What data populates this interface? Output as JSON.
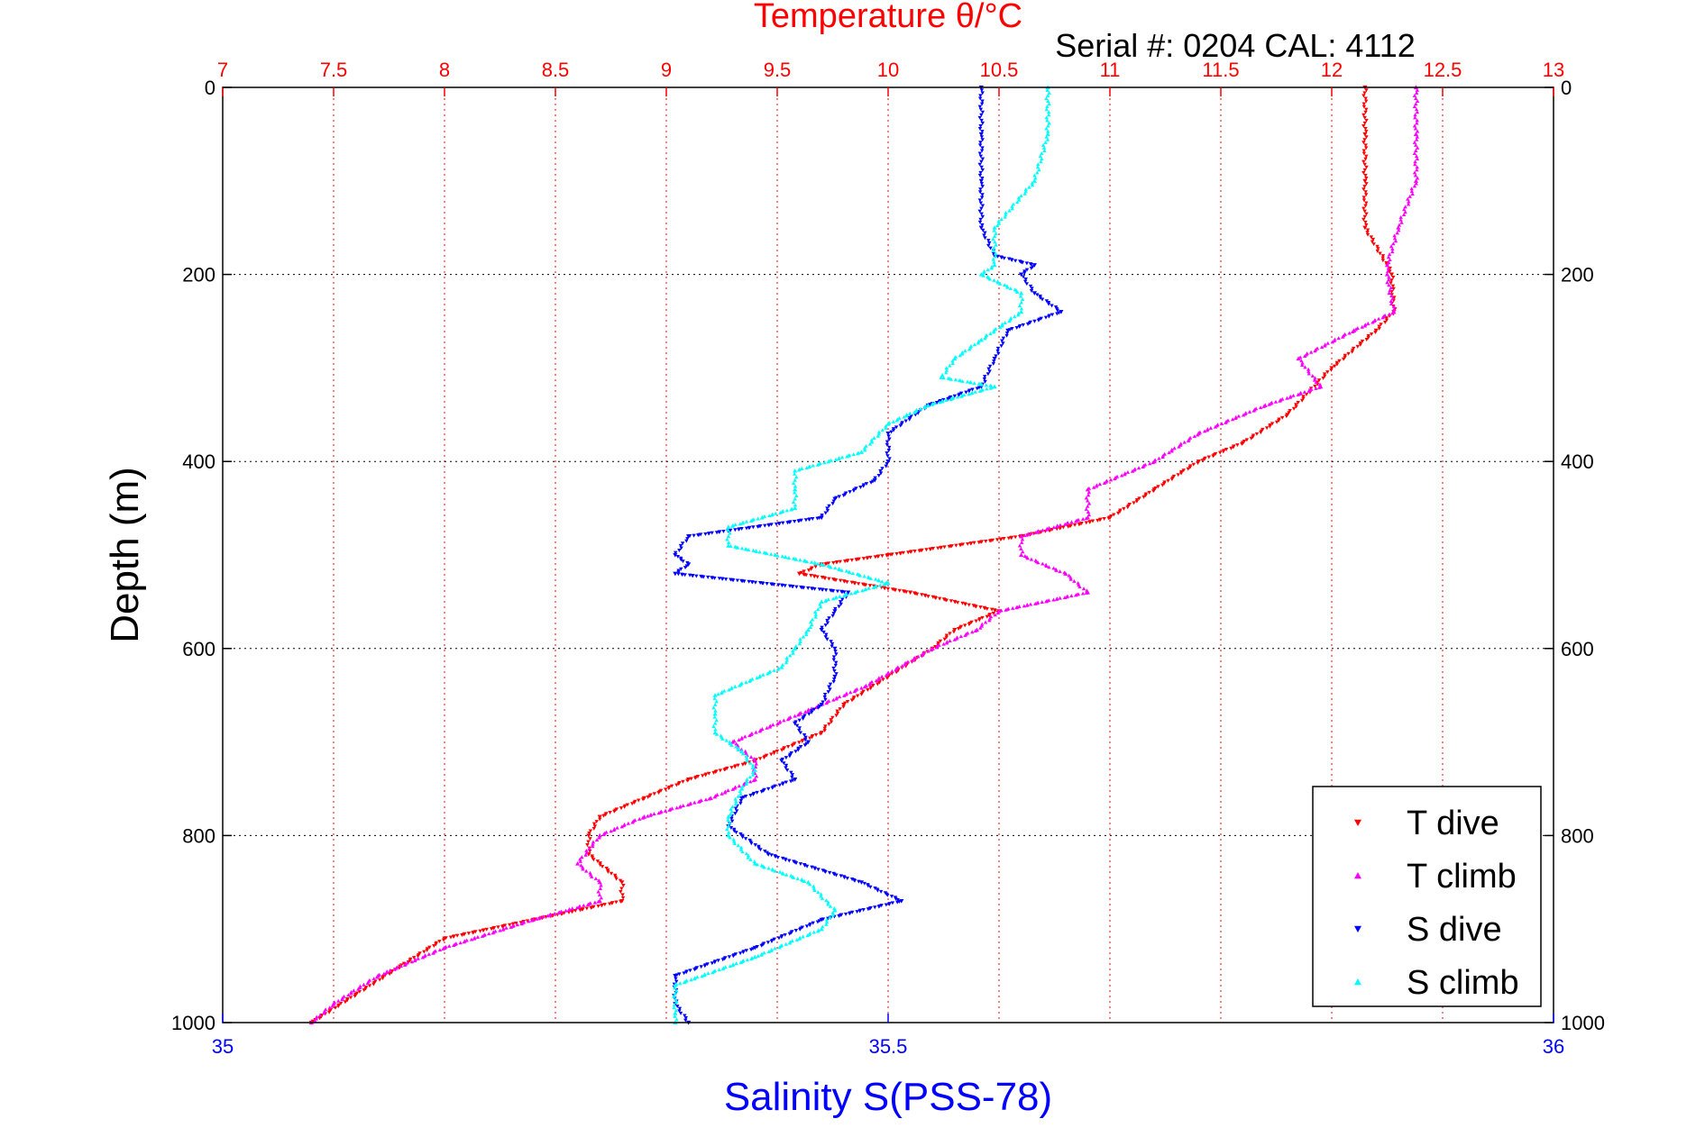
{
  "chart_data": {
    "type": "scatter",
    "title_top": "Temperature θ/°C",
    "serial_text": "Serial #: 0204  CAL: 4112",
    "xlabel_bottom": "Salinity S(PSS-78)",
    "ylabel": "Depth (m)",
    "y_axis": {
      "ticks": [
        0,
        200,
        400,
        600,
        800,
        1000
      ],
      "ylim": [
        0,
        1000
      ],
      "inverted": true
    },
    "x_top": {
      "ticks": [
        7,
        7.5,
        8,
        8.5,
        9,
        9.5,
        10,
        10.5,
        11,
        11.5,
        12,
        12.5,
        13
      ],
      "tick_labels": [
        "7",
        "7.5",
        "8",
        "8.5",
        "9",
        "9.5",
        "10",
        "10.5",
        "11",
        "11.5",
        "12",
        "12.5",
        "13"
      ],
      "xlim": [
        7,
        13
      ]
    },
    "x_bottom": {
      "ticks": [
        35,
        35.5,
        36
      ],
      "tick_labels": [
        "35",
        "35.5",
        "36"
      ],
      "xlim": [
        35,
        36
      ]
    },
    "grid": true,
    "legend_position": "bottom-right",
    "series": [
      {
        "name": "T dive",
        "axis": "top",
        "color": "#ff0000",
        "marker": "triangle-down",
        "depth": [
          0,
          50,
          100,
          150,
          190,
          200,
          240,
          260,
          300,
          350,
          380,
          400,
          430,
          460,
          480,
          500,
          510,
          520,
          540,
          560,
          580,
          600,
          630,
          660,
          690,
          720,
          740,
          760,
          780,
          800,
          820,
          850,
          870,
          890,
          910,
          940,
          970,
          1000
        ],
        "values": [
          12.15,
          12.15,
          12.15,
          12.15,
          12.25,
          12.27,
          12.28,
          12.2,
          12.0,
          11.8,
          11.6,
          11.4,
          11.2,
          11.0,
          10.6,
          10.0,
          9.7,
          9.6,
          10.1,
          10.5,
          10.3,
          10.2,
          10.0,
          9.8,
          9.7,
          9.4,
          9.1,
          8.9,
          8.7,
          8.65,
          8.65,
          8.8,
          8.8,
          8.4,
          8.0,
          7.8,
          7.6,
          7.4
        ]
      },
      {
        "name": "T climb",
        "axis": "top",
        "color": "#ff00ff",
        "marker": "triangle-up",
        "depth": [
          0,
          50,
          100,
          150,
          190,
          200,
          240,
          260,
          290,
          320,
          340,
          370,
          400,
          430,
          460,
          480,
          500,
          520,
          540,
          560,
          580,
          600,
          640,
          670,
          700,
          720,
          740,
          760,
          780,
          800,
          830,
          850,
          870,
          890,
          920,
          950,
          980,
          1000
        ],
        "values": [
          12.38,
          12.38,
          12.38,
          12.3,
          12.25,
          12.25,
          12.28,
          12.1,
          11.85,
          11.95,
          11.7,
          11.4,
          11.2,
          10.9,
          10.9,
          10.6,
          10.6,
          10.8,
          10.9,
          10.5,
          10.4,
          10.2,
          9.9,
          9.6,
          9.3,
          9.4,
          9.4,
          9.2,
          8.9,
          8.7,
          8.6,
          8.7,
          8.7,
          8.4,
          8.0,
          7.7,
          7.5,
          7.4
        ]
      },
      {
        "name": "S dive",
        "axis": "bottom",
        "color": "#0000ff",
        "marker": "triangle-down",
        "depth": [
          0,
          50,
          100,
          150,
          180,
          190,
          200,
          220,
          240,
          260,
          290,
          320,
          340,
          370,
          400,
          420,
          440,
          460,
          480,
          500,
          510,
          520,
          540,
          560,
          580,
          600,
          630,
          660,
          680,
          700,
          720,
          740,
          760,
          790,
          820,
          850,
          870,
          890,
          920,
          950,
          980,
          1000
        ],
        "values": [
          35.57,
          35.57,
          35.57,
          35.57,
          35.58,
          35.61,
          35.6,
          35.61,
          35.63,
          35.59,
          35.58,
          35.57,
          35.53,
          35.5,
          35.5,
          35.49,
          35.46,
          35.45,
          35.35,
          35.34,
          35.35,
          35.34,
          35.47,
          35.46,
          35.45,
          35.46,
          35.46,
          35.45,
          35.43,
          35.44,
          35.42,
          35.43,
          35.39,
          35.38,
          35.41,
          35.48,
          35.51,
          35.45,
          35.4,
          35.34,
          35.34,
          35.35
        ]
      },
      {
        "name": "S climb",
        "axis": "bottom",
        "color": "#00ffff",
        "marker": "triangle-up",
        "depth": [
          0,
          50,
          100,
          150,
          190,
          200,
          220,
          240,
          270,
          290,
          310,
          320,
          340,
          360,
          390,
          410,
          430,
          450,
          470,
          490,
          510,
          530,
          550,
          580,
          600,
          620,
          650,
          670,
          690,
          710,
          730,
          750,
          780,
          800,
          830,
          850,
          880,
          900,
          930,
          960,
          990,
          1000
        ],
        "values": [
          35.62,
          35.62,
          35.61,
          35.58,
          35.58,
          35.57,
          35.6,
          35.6,
          35.57,
          35.55,
          35.54,
          35.58,
          35.53,
          35.5,
          35.48,
          35.43,
          35.43,
          35.43,
          35.38,
          35.38,
          35.45,
          35.5,
          35.45,
          35.44,
          35.43,
          35.42,
          35.37,
          35.37,
          35.37,
          35.39,
          35.4,
          35.39,
          35.38,
          35.38,
          35.4,
          35.44,
          35.46,
          35.45,
          35.4,
          35.34,
          35.34,
          35.34
        ]
      }
    ]
  }
}
